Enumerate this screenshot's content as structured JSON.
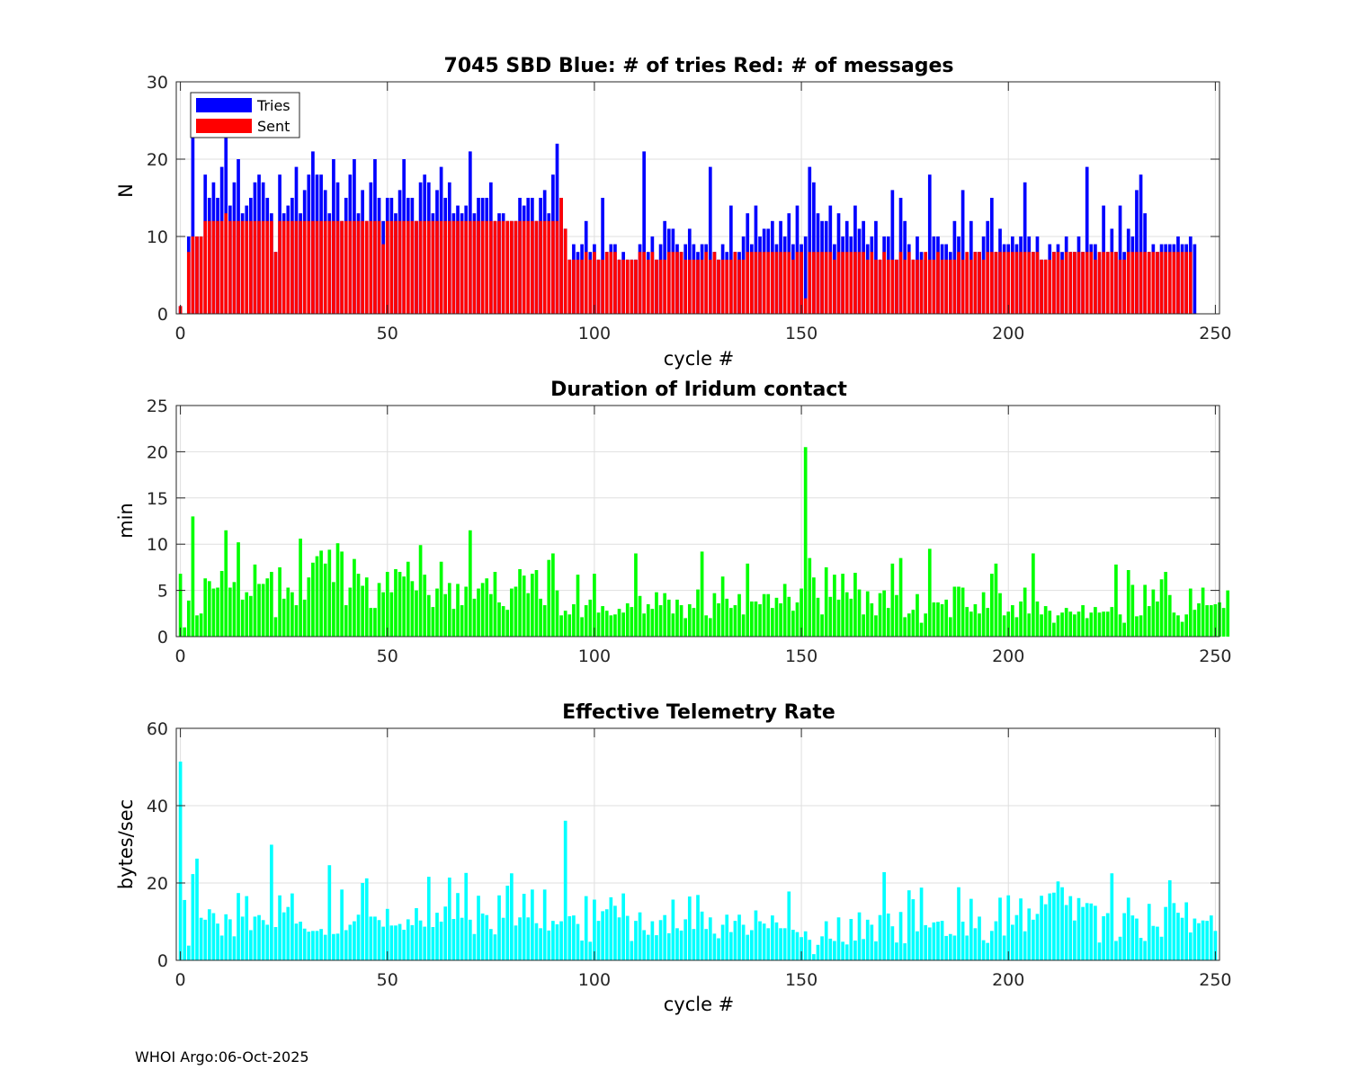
{
  "footer": "WHOI Argo:06-Oct-2025",
  "chart_data": [
    {
      "type": "bar",
      "title": "7045 SBD  Blue: # of tries   Red: # of messages",
      "xlabel": "cycle #",
      "ylabel": "N",
      "xlim": [
        -1,
        251
      ],
      "ylim": [
        0,
        30
      ],
      "xticks": [
        0,
        50,
        100,
        150,
        200,
        250
      ],
      "yticks": [
        0,
        10,
        20,
        30
      ],
      "grid": true,
      "legend": {
        "placement": "top-left",
        "entries": [
          {
            "label": "Tries",
            "color": "#0000ff"
          },
          {
            "label": "Sent",
            "color": "#ff0000"
          }
        ]
      },
      "x_start": 0,
      "series": [
        {
          "name": "Tries",
          "color": "#0000ff",
          "values": [
            1,
            0,
            10,
            26,
            10,
            10,
            18,
            15,
            17,
            15,
            19,
            24,
            14,
            17,
            20,
            13,
            14,
            15,
            17,
            18,
            17,
            15,
            13,
            8,
            18,
            13,
            14,
            15,
            19,
            13,
            16,
            18,
            21,
            18,
            18,
            16,
            13,
            20,
            17,
            12,
            15,
            18,
            20,
            13,
            16,
            12,
            17,
            20,
            15,
            12,
            15,
            15,
            13,
            16,
            20,
            15,
            15,
            12,
            17,
            18,
            17,
            13,
            16,
            19,
            15,
            17,
            13,
            14,
            13,
            14,
            21,
            13,
            15,
            15,
            15,
            17,
            12,
            13,
            13,
            12,
            12,
            12,
            15,
            14,
            15,
            15,
            12,
            15,
            16,
            13,
            18,
            22,
            15,
            11,
            7,
            9,
            8,
            9,
            12,
            8,
            9,
            7,
            15,
            8,
            9,
            9,
            7,
            8,
            7,
            7,
            7,
            9,
            21,
            8,
            10,
            7,
            9,
            12,
            11,
            11,
            9,
            8,
            9,
            11,
            9,
            8,
            9,
            9,
            19,
            8,
            7,
            9,
            8,
            14,
            8,
            8,
            10,
            13,
            9,
            14,
            10,
            11,
            11,
            12,
            9,
            12,
            10,
            13,
            9,
            14,
            9,
            10,
            19,
            17,
            13,
            12,
            12,
            14,
            9,
            13,
            10,
            12,
            10,
            14,
            11,
            12,
            9,
            10,
            12,
            7,
            10,
            10,
            16,
            7,
            15,
            12,
            9,
            7,
            10,
            8,
            7,
            18,
            10,
            10,
            9,
            9,
            8,
            12,
            10,
            16,
            7,
            12,
            8,
            8,
            10,
            12,
            15,
            8,
            11,
            9,
            9,
            10,
            9,
            10,
            17,
            10,
            8,
            10,
            7,
            7,
            9,
            8,
            9,
            8,
            10,
            8,
            8,
            10,
            8,
            19,
            9,
            9,
            7,
            14,
            8,
            11,
            8,
            14,
            8,
            11,
            10,
            16,
            18,
            13,
            8,
            9,
            8,
            9,
            9,
            9,
            9,
            10,
            9,
            9,
            10,
            9
          ]
        },
        {
          "name": "Sent",
          "color": "#ff0000",
          "values": [
            1,
            0,
            8,
            10,
            10,
            10,
            12,
            12,
            12,
            12,
            12,
            13,
            12,
            12,
            12,
            12,
            12,
            12,
            12,
            12,
            12,
            12,
            12,
            8,
            12,
            12,
            12,
            12,
            12,
            12,
            12,
            12,
            12,
            12,
            12,
            12,
            12,
            12,
            12,
            12,
            12,
            12,
            12,
            12,
            12,
            12,
            12,
            12,
            12,
            9,
            12,
            12,
            12,
            12,
            12,
            12,
            12,
            12,
            12,
            12,
            12,
            12,
            12,
            12,
            12,
            12,
            12,
            12,
            12,
            12,
            12,
            12,
            12,
            12,
            12,
            12,
            12,
            12,
            12,
            12,
            12,
            12,
            12,
            12,
            12,
            12,
            12,
            12,
            12,
            12,
            12,
            12,
            15,
            11,
            7,
            7,
            7,
            7,
            8,
            7,
            8,
            7,
            7,
            8,
            8,
            8,
            7,
            7,
            7,
            7,
            7,
            8,
            8,
            7,
            8,
            7,
            7,
            7,
            8,
            8,
            8,
            8,
            7,
            7,
            7,
            7,
            7,
            8,
            7,
            8,
            7,
            7,
            7,
            7,
            8,
            7,
            7,
            8,
            8,
            8,
            8,
            8,
            8,
            8,
            8,
            8,
            8,
            8,
            7,
            8,
            8,
            2,
            8,
            8,
            8,
            8,
            8,
            8,
            7,
            8,
            8,
            8,
            8,
            8,
            8,
            8,
            7,
            8,
            7,
            7,
            8,
            7,
            7,
            7,
            8,
            7,
            8,
            7,
            7,
            7,
            8,
            7,
            7,
            8,
            7,
            7,
            7,
            7,
            8,
            7,
            8,
            7,
            8,
            8,
            7,
            8,
            8,
            8,
            8,
            8,
            8,
            8,
            8,
            8,
            8,
            8,
            8,
            8,
            7,
            7,
            7,
            8,
            8,
            7,
            8,
            8,
            8,
            8,
            8,
            8,
            8,
            7,
            8,
            8,
            8,
            8,
            8,
            7,
            7,
            8,
            8,
            8,
            8,
            8,
            8,
            8,
            8,
            8,
            8,
            8,
            8,
            8,
            8,
            8,
            8
          ]
        }
      ]
    },
    {
      "type": "bar",
      "title": "Duration of Iridum contact",
      "xlabel": "",
      "ylabel": "min",
      "xlim": [
        -1,
        251
      ],
      "ylim": [
        0,
        25
      ],
      "xticks": [
        0,
        50,
        100,
        150,
        200,
        250
      ],
      "yticks": [
        0,
        5,
        10,
        15,
        20,
        25
      ],
      "grid": true,
      "x_start": 0,
      "series": [
        {
          "name": "Duration",
          "color": "#00ff00",
          "values": [
            6.8,
            1.0,
            3.9,
            13.0,
            2.3,
            2.5,
            6.3,
            6.0,
            5.2,
            5.3,
            7.1,
            11.5,
            5.3,
            5.9,
            10.2,
            4.0,
            4.8,
            4.4,
            7.8,
            5.7,
            5.7,
            6.3,
            7.0,
            2.1,
            7.5,
            4.1,
            5.3,
            4.8,
            3.4,
            10.6,
            4.0,
            6.4,
            8.0,
            8.7,
            9.3,
            7.9,
            9.4,
            5.9,
            10.1,
            9.2,
            3.4,
            5.3,
            8.4,
            6.8,
            5.5,
            6.4,
            3.1,
            3.1,
            5.8,
            4.8,
            7.0,
            4.8,
            7.3,
            7.0,
            6.5,
            8.1,
            6.0,
            5.0,
            9.9,
            6.7,
            4.5,
            3.2,
            5.2,
            8.1,
            4.6,
            5.8,
            3.0,
            5.7,
            3.4,
            5.4,
            11.5,
            4.1,
            5.2,
            5.8,
            6.3,
            4.6,
            7.0,
            3.7,
            3.3,
            2.9,
            5.2,
            5.4,
            7.3,
            6.6,
            4.7,
            6.8,
            7.2,
            4.1,
            3.4,
            8.3,
            9.0,
            5.0,
            2.3,
            2.8,
            2.4,
            3.5,
            6.7,
            2.1,
            3.4,
            4.0,
            6.8,
            2.6,
            3.3,
            2.8,
            2.3,
            2.4,
            3.0,
            2.6,
            3.6,
            3.2,
            9.0,
            4.4,
            2.5,
            3.5,
            3.0,
            4.8,
            3.4,
            4.7,
            4.0,
            2.5,
            4.0,
            3.4,
            2.0,
            3.5,
            3.1,
            5.1,
            9.2,
            2.3,
            2.0,
            4.7,
            3.6,
            6.5,
            4.1,
            3.1,
            3.4,
            4.6,
            2.4,
            7.9,
            3.8,
            3.8,
            3.5,
            4.6,
            4.6,
            3.1,
            4.2,
            3.6,
            5.7,
            4.3,
            2.8,
            3.7,
            5.2,
            20.5,
            8.5,
            6.4,
            4.2,
            2.4,
            7.5,
            4.3,
            6.7,
            4.0,
            6.8,
            4.8,
            4.1,
            6.9,
            5.1,
            2.4,
            4.9,
            3.6,
            2.3,
            4.7,
            5.0,
            3.1,
            7.9,
            4.5,
            8.5,
            2.1,
            2.5,
            2.9,
            4.6,
            1.5,
            2.5,
            9.5,
            3.7,
            3.7,
            3.5,
            4.0,
            2.1,
            5.4,
            5.4,
            5.3,
            3.2,
            2.7,
            3.5,
            2.5,
            4.8,
            3.1,
            6.8,
            7.9,
            4.7,
            2.3,
            2.7,
            3.4,
            2.1,
            3.8,
            5.3,
            2.5,
            9.0,
            3.8,
            2.4,
            3.3,
            2.8,
            1.5,
            2.3,
            2.6,
            3.1,
            2.7,
            2.4,
            2.7,
            3.4,
            2.0,
            2.6,
            3.2,
            2.6,
            2.7,
            2.7,
            3.2,
            7.8,
            2.4,
            1.5,
            7.2,
            5.6,
            2.2,
            2.3,
            5.6,
            3.3,
            5.1,
            3.8,
            6.2,
            7.0,
            4.5,
            2.6,
            2.3,
            1.6,
            2.4,
            5.2,
            2.9,
            3.6,
            5.3,
            3.4,
            3.4,
            3.5,
            3.7,
            3.1,
            5.0
          ]
        }
      ]
    },
    {
      "type": "bar",
      "title": "Effective Telemetry Rate",
      "xlabel": "cycle #",
      "ylabel": "bytes/sec",
      "xlim": [
        -1,
        251
      ],
      "ylim": [
        0,
        60
      ],
      "xticks": [
        0,
        50,
        100,
        150,
        200,
        250
      ],
      "yticks": [
        0,
        20,
        40,
        60
      ],
      "grid": true,
      "x_start": 0,
      "series": [
        {
          "name": "Rate",
          "color": "#00ffff",
          "values": [
            51.4,
            15.6,
            3.8,
            22.3,
            26.3,
            11.0,
            10.5,
            13.2,
            12.2,
            9.5,
            6.4,
            11.9,
            10.6,
            6.2,
            17.4,
            11.3,
            16.6,
            7.8,
            11.3,
            11.7,
            10.4,
            9.2,
            29.9,
            8.6,
            16.8,
            12.4,
            13.8,
            17.3,
            9.5,
            10.0,
            8.2,
            7.4,
            7.6,
            7.6,
            8.1,
            6.6,
            24.6,
            6.8,
            6.9,
            18.3,
            7.8,
            9.2,
            10.1,
            11.8,
            20.0,
            21.2,
            11.3,
            11.3,
            10.4,
            8.7,
            13.3,
            9.0,
            9.0,
            9.4,
            7.9,
            10.6,
            9.1,
            13.5,
            10.3,
            8.7,
            21.6,
            8.6,
            12.3,
            10.0,
            13.9,
            21.4,
            10.7,
            17.4,
            11.0,
            22.6,
            10.5,
            6.8,
            16.7,
            12.1,
            11.7,
            8.1,
            6.7,
            16.8,
            11.0,
            19.3,
            22.5,
            9.0,
            11.1,
            17.2,
            11.1,
            18.3,
            9.6,
            8.3,
            18.3,
            7.7,
            10.2,
            9.3,
            10.1,
            36.1,
            11.4,
            11.6,
            9.4,
            5.1,
            16.6,
            4.8,
            15.7,
            10.2,
            12.7,
            13.2,
            16.3,
            14.1,
            11.1,
            17.3,
            11.5,
            5.0,
            10.2,
            12.4,
            7.8,
            6.6,
            10.1,
            6.5,
            10.4,
            11.7,
            7.0,
            15.7,
            8.3,
            7.7,
            10.6,
            16.5,
            8.1,
            16.9,
            12.6,
            8.1,
            11.1,
            6.9,
            5.7,
            9.2,
            11.8,
            7.3,
            10.2,
            11.8,
            9.2,
            6.6,
            7.8,
            12.9,
            10.1,
            9.5,
            8.3,
            11.6,
            9.8,
            8.3,
            8.3,
            17.8,
            7.9,
            7.3,
            6.0,
            7.5,
            5.3,
            1.6,
            4.0,
            6.2,
            10.1,
            5.6,
            5.0,
            11.1,
            4.8,
            4.1,
            10.7,
            5.1,
            12.4,
            5.5,
            10.5,
            9.2,
            4.9,
            11.7,
            22.8,
            12.1,
            8.8,
            4.6,
            12.5,
            4.4,
            18.1,
            15.8,
            7.5,
            18.8,
            9.1,
            8.5,
            9.8,
            10.0,
            10.2,
            6.3,
            6.8,
            6.4,
            18.9,
            10.0,
            6.4,
            15.9,
            8.3,
            11.3,
            5.2,
            4.5,
            7.6,
            10.1,
            16.2,
            6.4,
            16.8,
            9.2,
            11.7,
            16.0,
            7.5,
            13.4,
            10.5,
            12.0,
            16.7,
            14.5,
            17.3,
            17.5,
            20.4,
            18.9,
            14.3,
            16.6,
            10.3,
            16.1,
            13.8,
            14.8,
            14.7,
            14.1,
            4.6,
            11.4,
            12.2,
            22.5,
            5.0,
            6.1,
            12.2,
            16.2,
            11.6,
            10.8,
            5.8,
            5.0,
            14.6,
            8.9,
            8.7,
            6.1,
            13.8,
            20.7,
            14.8,
            12.3,
            11.0,
            15.0,
            7.2,
            10.8,
            9.6,
            10.3,
            10.2,
            11.6,
            7.6
          ]
        }
      ]
    }
  ]
}
